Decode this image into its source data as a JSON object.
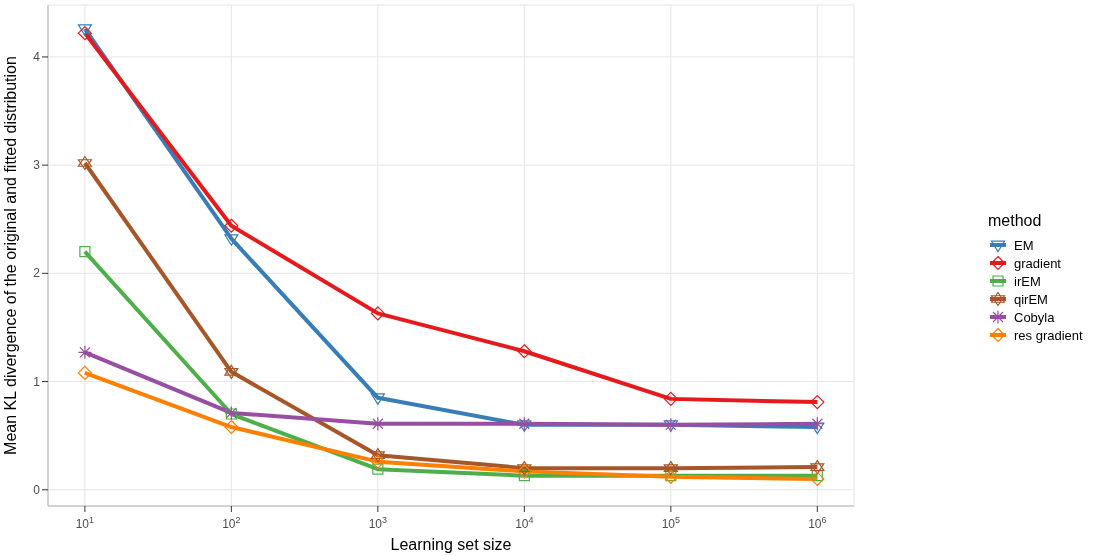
{
  "chart_data": {
    "type": "line",
    "xlabel": "Learning set size",
    "ylabel": "Mean KL divergence of the original and fitted distribution",
    "legend_title": "method",
    "legend": "right",
    "grid": true,
    "log": "x",
    "line_style": "solid",
    "x": [
      10,
      100,
      1000,
      10000,
      100000,
      1000000
    ],
    "xlim": [
      5.6,
      1780000
    ],
    "xticks": [
      {
        "value": 10,
        "label": "10$^{1}$"
      },
      {
        "value": 100,
        "label": "10$^{2}$"
      },
      {
        "value": 1000,
        "label": "10$^{3}$"
      },
      {
        "value": 10000,
        "label": "10$^{4}$"
      },
      {
        "value": 100000,
        "label": "10$^{5}$"
      },
      {
        "value": 1000000,
        "label": "10$^{6}$"
      }
    ],
    "ylim": [
      -0.15,
      4.48
    ],
    "yticks": [
      0,
      1,
      2,
      3,
      4
    ],
    "series": [
      {
        "name": "EM",
        "color": "#377eb8",
        "marker": "triangle",
        "values": [
          4.26,
          2.32,
          0.85,
          0.6,
          0.6,
          0.58
        ]
      },
      {
        "name": "gradient",
        "color": "#e41a1c",
        "marker": "diamond",
        "values": [
          4.22,
          2.44,
          1.63,
          1.28,
          0.84,
          0.81
        ]
      },
      {
        "name": "irEM",
        "color": "#4daf4a",
        "marker": "square",
        "values": [
          2.2,
          0.7,
          0.19,
          0.13,
          0.13,
          0.13
        ]
      },
      {
        "name": "qirEM",
        "color": "#a65628",
        "marker": "star",
        "values": [
          3.02,
          1.09,
          0.32,
          0.2,
          0.2,
          0.21
        ]
      },
      {
        "name": "Cobyla",
        "color": "#984ea3",
        "marker": "cross",
        "values": [
          1.27,
          0.71,
          0.61,
          0.61,
          0.6,
          0.61
        ]
      },
      {
        "name": "res gradient",
        "color": "#ff7f00",
        "marker": "diamond",
        "values": [
          1.08,
          0.58,
          0.26,
          0.17,
          0.12,
          0.1
        ]
      }
    ]
  }
}
